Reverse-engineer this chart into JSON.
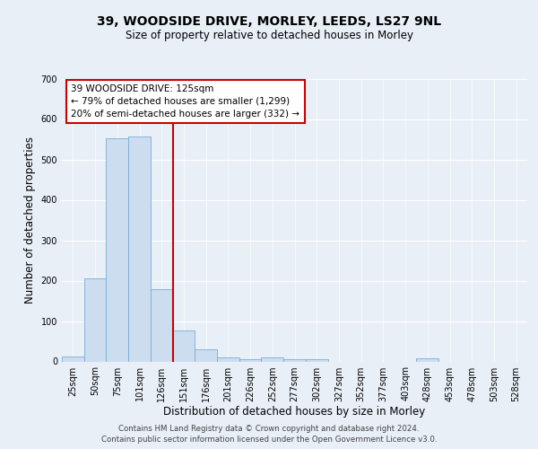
{
  "title1": "39, WOODSIDE DRIVE, MORLEY, LEEDS, LS27 9NL",
  "title2": "Size of property relative to detached houses in Morley",
  "xlabel": "Distribution of detached houses by size in Morley",
  "ylabel": "Number of detached properties",
  "bin_labels": [
    "25sqm",
    "50sqm",
    "75sqm",
    "101sqm",
    "126sqm",
    "151sqm",
    "176sqm",
    "201sqm",
    "226sqm",
    "252sqm",
    "277sqm",
    "302sqm",
    "327sqm",
    "352sqm",
    "377sqm",
    "403sqm",
    "428sqm",
    "453sqm",
    "478sqm",
    "503sqm",
    "528sqm"
  ],
  "bar_values": [
    12,
    205,
    553,
    557,
    178,
    77,
    30,
    9,
    6,
    9,
    6,
    5,
    0,
    0,
    0,
    0,
    7,
    0,
    0,
    0,
    0
  ],
  "bar_color": "#ccddf0",
  "bar_edge_color": "#7aadd4",
  "vline_color": "#cc0000",
  "annotation_title": "39 WOODSIDE DRIVE: 125sqm",
  "annotation_line1": "← 79% of detached houses are smaller (1,299)",
  "annotation_line2": "20% of semi-detached houses are larger (332) →",
  "annotation_box_color": "#ffffff",
  "annotation_box_edge": "#cc0000",
  "ylim": [
    0,
    700
  ],
  "yticks": [
    0,
    100,
    200,
    300,
    400,
    500,
    600,
    700
  ],
  "footer1": "Contains HM Land Registry data © Crown copyright and database right 2024.",
  "footer2": "Contains public sector information licensed under the Open Government Licence v3.0.",
  "bg_color": "#e8eff7",
  "plot_bg_color": "#e8eff7"
}
